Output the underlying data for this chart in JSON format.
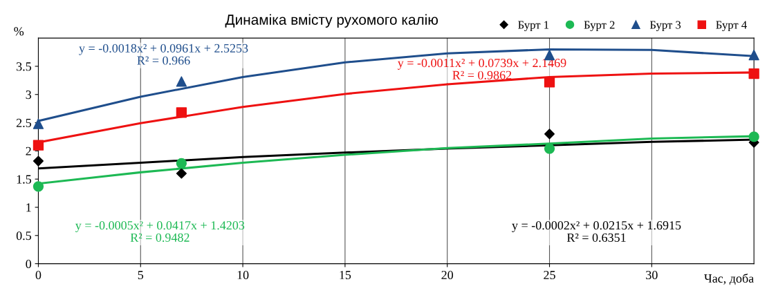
{
  "chart_data": {
    "type": "scatter",
    "title": "Динаміка вмісту рухомого калію",
    "xlabel": "Час, доба",
    "ylabel": "%",
    "x": [
      0,
      7,
      25,
      35
    ],
    "xlim": [
      0,
      35
    ],
    "xticks": [
      0,
      5,
      10,
      15,
      20,
      25,
      30
    ],
    "ylim": [
      0,
      4
    ],
    "yticks": [
      0,
      0.5,
      1,
      1.5,
      2,
      2.5,
      3,
      3.5
    ],
    "grid": "x",
    "legend": "top right",
    "series": [
      {
        "name": "Бурт 1",
        "color": "#000000",
        "marker": "diamond",
        "values": [
          1.82,
          1.6,
          2.3,
          2.15
        ]
      },
      {
        "name": "Бурт 2",
        "color": "#1db954",
        "marker": "circle",
        "values": [
          1.37,
          1.78,
          2.04,
          2.25
        ]
      },
      {
        "name": "Бурт 3",
        "color": "#1f4e8c",
        "marker": "triangle",
        "values": [
          2.48,
          3.23,
          3.7,
          3.7
        ]
      },
      {
        "name": "Бурт 4",
        "color": "#ee1111",
        "marker": "square",
        "values": [
          2.1,
          2.68,
          3.22,
          3.37
        ]
      },
      {
        "type": "line",
        "color": "#000000",
        "x": [
          0,
          5,
          10,
          15,
          20,
          25,
          30,
          35
        ],
        "values": [
          1.69,
          1.79,
          1.89,
          1.97,
          2.04,
          2.1,
          2.16,
          2.2
        ]
      },
      {
        "type": "line",
        "color": "#1db954",
        "x": [
          0,
          5,
          10,
          15,
          20,
          25,
          30,
          35
        ],
        "values": [
          1.42,
          1.62,
          1.79,
          1.93,
          2.05,
          2.13,
          2.22,
          2.26
        ]
      },
      {
        "type": "line",
        "color": "#1f4e8c",
        "x": [
          0,
          5,
          10,
          15,
          20,
          25,
          30,
          35
        ],
        "values": [
          2.53,
          2.96,
          3.31,
          3.57,
          3.73,
          3.8,
          3.79,
          3.68
        ]
      },
      {
        "type": "line",
        "color": "#ee1111",
        "x": [
          0,
          5,
          10,
          15,
          20,
          25,
          30,
          35
        ],
        "values": [
          2.15,
          2.49,
          2.78,
          3.01,
          3.18,
          3.31,
          3.37,
          3.39
        ]
      }
    ],
    "annotations": [
      "y = -0.0018x² + 0.0961x + 2.5253\nR² = 0.966",
      "y = -0.0011x² + 0.0739x + 2.1469\nR² = 0.9862",
      "y = -0.0005x² + 0.0417x + 1.4203\nR² = 0.9482",
      "y = -0.0002x² + 0.0215x + 1.6915\nR² = 0.6351"
    ]
  }
}
